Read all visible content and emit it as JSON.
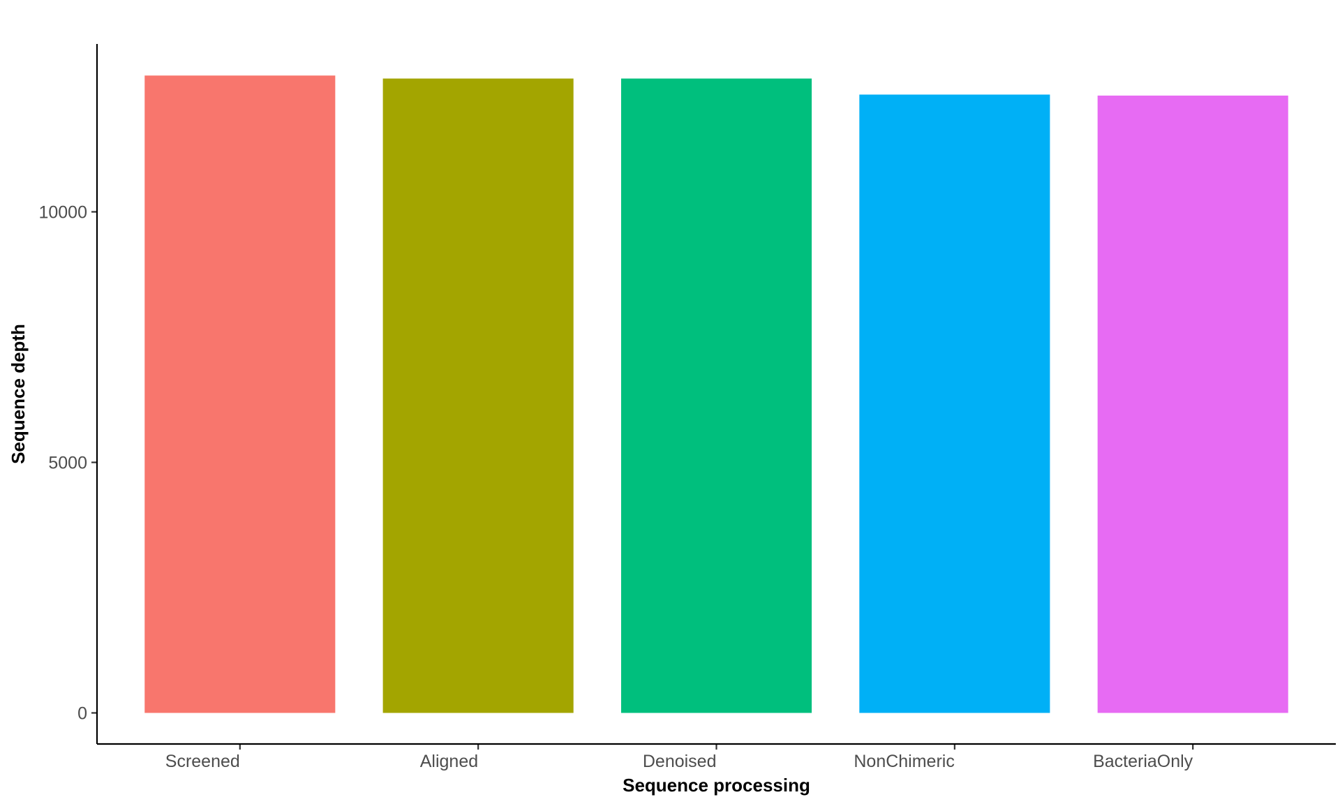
{
  "chart_data": {
    "type": "bar",
    "title": "",
    "xlabel": "Sequence processing",
    "ylabel": "Sequence depth",
    "categories": [
      "Screened",
      "Aligned",
      "Denoised",
      "NonChimeric",
      "BacteriaOnly"
    ],
    "values": [
      12720,
      12660,
      12660,
      12340,
      12320
    ],
    "colors": [
      "#F8766D",
      "#A3A500",
      "#00BF7D",
      "#00B0F6",
      "#E76BF3"
    ],
    "ylim": [
      -620,
      13350
    ],
    "yticks": [
      0,
      5000,
      10000
    ],
    "ytick_labels": [
      "0",
      "5000",
      "10000"
    ],
    "grid": false,
    "legend": "none"
  }
}
